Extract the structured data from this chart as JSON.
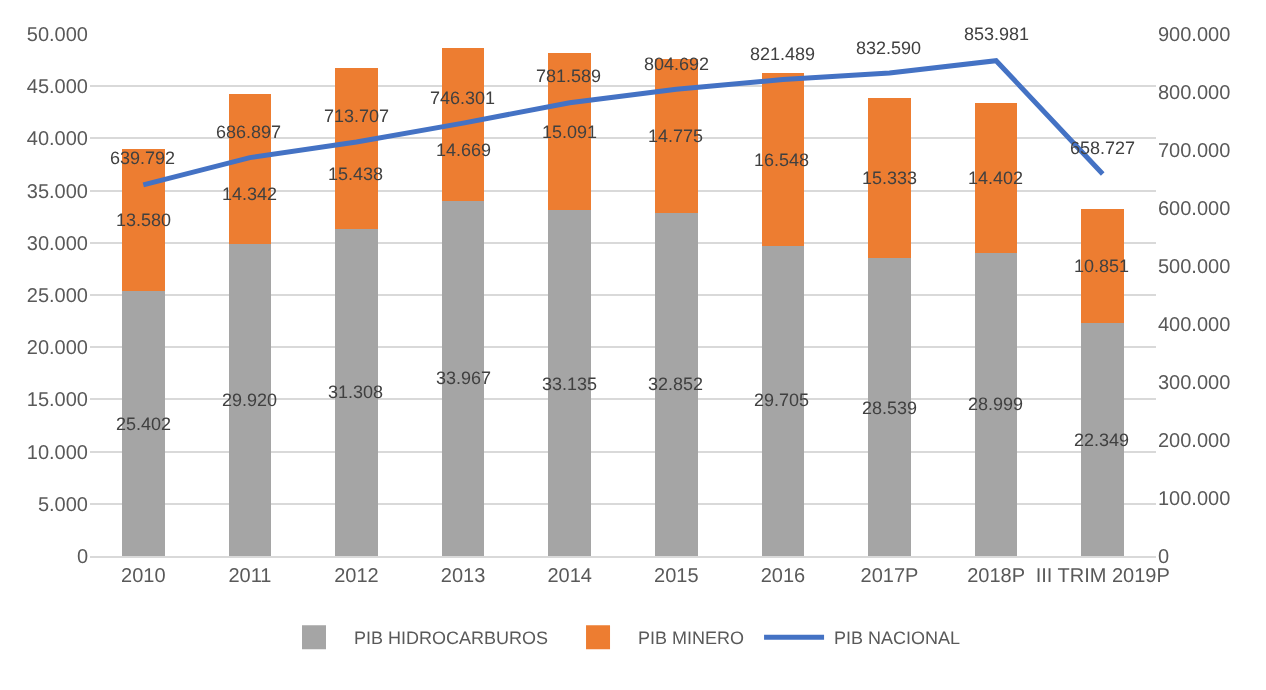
{
  "chart_data": {
    "type": "bar",
    "stacked": true,
    "categories": [
      "2010",
      "2011",
      "2012",
      "2013",
      "2014",
      "2015",
      "2016",
      "2017P",
      "2018P",
      "III TRIM 2019P"
    ],
    "series": [
      {
        "name": "PIB HIDROCARBUROS",
        "color": "#a5a5a5",
        "values": [
          25402,
          29920,
          31308,
          33967,
          33135,
          32852,
          29705,
          28539,
          28999,
          22349
        ],
        "value_labels": [
          "25.402",
          "29.920",
          "31.308",
          "33.967",
          "33.135",
          "32.852",
          "29.705",
          "28.539",
          "28.999",
          "22.349"
        ]
      },
      {
        "name": "PIB MINERO",
        "color": "#ed7d31",
        "values": [
          13580,
          14342,
          15438,
          14669,
          15091,
          14775,
          16548,
          15333,
          14402,
          10851
        ],
        "value_labels": [
          "13.580",
          "14.342",
          "15.438",
          "14.669",
          "15.091",
          "14.775",
          "16.548",
          "15.333",
          "14.402",
          "10.851"
        ]
      },
      {
        "name": "PIB NACIONAL",
        "type": "line",
        "axis": "y2",
        "color": "#4472c4",
        "values": [
          639792,
          686897,
          713707,
          746301,
          781589,
          804692,
          821489,
          832590,
          853981,
          658727
        ],
        "value_labels": [
          "639.792",
          "686.897",
          "713.707",
          "746.301",
          "781.589",
          "804.692",
          "821.489",
          "832.590",
          "853.981",
          "658.727"
        ]
      }
    ],
    "ylim": [
      0,
      50000
    ],
    "yticks": [
      0,
      {
        "value": 5000,
        "label": "5.000"
      },
      {
        "value": 10000,
        "label": "10.000"
      },
      {
        "value": 15000,
        "label": "15.000"
      },
      {
        "value": 20000,
        "label": "20.000"
      },
      {
        "value": 25000,
        "label": "25.000"
      },
      {
        "value": 30000,
        "label": "30.000"
      },
      {
        "value": 35000,
        "label": "35.000"
      },
      {
        "value": 40000,
        "label": "40.000"
      },
      {
        "value": 45000,
        "label": "45.000"
      },
      {
        "value": 50000,
        "label": "50.000"
      }
    ],
    "y2lim": [
      0,
      900000
    ],
    "y2ticks": [
      0,
      {
        "value": 100000,
        "label": "100.000"
      },
      {
        "value": 200000,
        "label": "200.000"
      },
      {
        "value": 300000,
        "label": "300.000"
      },
      {
        "value": 400000,
        "label": "400.000"
      },
      {
        "value": 500000,
        "label": "500.000"
      },
      {
        "value": 600000,
        "label": "600.000"
      },
      {
        "value": 700000,
        "label": "700.000"
      },
      {
        "value": 800000,
        "label": "800.000"
      },
      {
        "value": 900000,
        "label": "900.000"
      }
    ],
    "grid": "y",
    "legend": "bottom"
  }
}
